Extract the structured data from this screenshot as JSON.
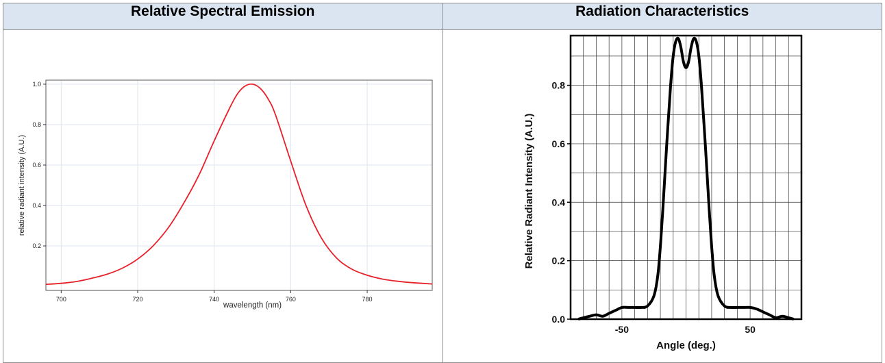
{
  "headers": {
    "left": "Relative Spectral Emission",
    "right": "Radiation Characteristics"
  },
  "chart_data": [
    {
      "type": "line",
      "title": "",
      "xlabel": "wavelength (nm)",
      "ylabel": "relative radiant intensity (A.U.)",
      "xlim": [
        696,
        797
      ],
      "ylim": [
        -0.02,
        1.02
      ],
      "xticks": [
        700,
        720,
        740,
        760,
        780
      ],
      "yticks": [
        0.2,
        0.4,
        0.6,
        0.8,
        1.0
      ],
      "ytick_labels": [
        "0.2",
        "0.4",
        "0.6",
        "0.8",
        "1.0"
      ],
      "grid": true,
      "line_color": "#e8202a",
      "series": [
        {
          "x": [
            696,
            700,
            704,
            708,
            712,
            716,
            720,
            724,
            728,
            732,
            736,
            740,
            744,
            746,
            748,
            750,
            752,
            754,
            756,
            760,
            764,
            768,
            772,
            776,
            780,
            784,
            788,
            792,
            797
          ],
          "y": [
            0.01,
            0.015,
            0.024,
            0.04,
            0.06,
            0.09,
            0.135,
            0.2,
            0.29,
            0.41,
            0.55,
            0.72,
            0.88,
            0.95,
            0.99,
            1.0,
            0.98,
            0.93,
            0.85,
            0.62,
            0.4,
            0.24,
            0.14,
            0.085,
            0.055,
            0.036,
            0.025,
            0.018,
            0.012
          ]
        }
      ]
    },
    {
      "type": "line",
      "title": "",
      "xlabel": "Angle (deg.)",
      "ylabel": "Relative Radiant Intensity (A.U.)",
      "xlim": [
        -90,
        90
      ],
      "ylim": [
        0,
        0.97
      ],
      "xticks": [
        -50,
        50
      ],
      "yticks": [
        0.0,
        0.2,
        0.4,
        0.6,
        0.8
      ],
      "ytick_labels": [
        "0.0",
        "0.2",
        "0.4",
        "0.6",
        "0.8"
      ],
      "grid": true,
      "grid_x_step": 10,
      "grid_y_step": 0.1,
      "line_color": "#000000",
      "series": [
        {
          "x": [
            -84,
            -80,
            -75,
            -70,
            -65,
            -60,
            -55,
            -50,
            -45,
            -40,
            -35,
            -30,
            -25,
            -22,
            -20,
            -18,
            -15,
            -12,
            -10,
            -8,
            -6,
            -4,
            -2,
            0,
            2,
            4,
            6,
            8,
            10,
            12,
            15,
            18,
            20,
            22,
            25,
            30,
            35,
            40,
            45,
            50,
            55,
            60,
            65,
            70,
            75,
            80,
            84
          ],
          "y": [
            0.0,
            0.005,
            0.01,
            0.015,
            0.01,
            0.02,
            0.03,
            0.04,
            0.04,
            0.04,
            0.04,
            0.045,
            0.08,
            0.15,
            0.25,
            0.38,
            0.6,
            0.8,
            0.9,
            0.95,
            0.96,
            0.93,
            0.88,
            0.86,
            0.88,
            0.93,
            0.96,
            0.95,
            0.9,
            0.8,
            0.6,
            0.38,
            0.25,
            0.15,
            0.08,
            0.045,
            0.04,
            0.04,
            0.04,
            0.04,
            0.035,
            0.025,
            0.015,
            0.005,
            0.01,
            0.005,
            0.0
          ]
        }
      ]
    }
  ]
}
